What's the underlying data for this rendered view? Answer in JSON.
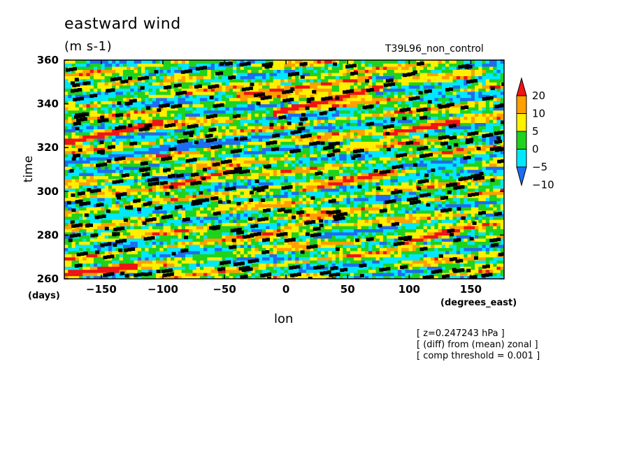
{
  "chart_data": {
    "type": "heatmap",
    "title": "eastward wind",
    "subtitle": "(m s-1)",
    "run_label": "T39L96_non_control",
    "xlabel": "lon",
    "xunit": "(degrees_east)",
    "ylabel": "time",
    "yunit": "(days)",
    "xlim": [
      -180,
      177
    ],
    "ylim": [
      260,
      360
    ],
    "xticks": [
      -150,
      -100,
      -50,
      0,
      50,
      100,
      150
    ],
    "yticks": [
      260,
      280,
      300,
      320,
      340,
      360
    ],
    "colorbar": {
      "levels": [
        -10,
        -5,
        0,
        5,
        10,
        20
      ],
      "labels": [
        "20",
        "10",
        "5",
        "0",
        "-5",
        "-10"
      ],
      "colors": [
        "#1e6cf0",
        "#00e8ff",
        "#1ed21e",
        "#fff000",
        "#ff9f00",
        "#f01414"
      ]
    },
    "overlay": "black dots mark points exceeding comp threshold",
    "streaks": [
      {
        "lon0": -180,
        "t0": 322,
        "lon1": -100,
        "t1": 332,
        "value": 22
      },
      {
        "lon0": -10,
        "t0": 336,
        "lon1": 80,
        "t1": 348,
        "value": 21
      },
      {
        "lon0": -40,
        "t0": 344,
        "lon1": 70,
        "t1": 352,
        "value": 14
      },
      {
        "lon0": 80,
        "t0": 326,
        "lon1": 140,
        "t1": 332,
        "value": 20
      },
      {
        "lon0": -180,
        "t0": 262,
        "lon1": -120,
        "t1": 266,
        "value": 18
      },
      {
        "lon0": 90,
        "t0": 276,
        "lon1": 140,
        "t1": 282,
        "value": 20
      },
      {
        "lon0": -100,
        "t0": 302,
        "lon1": -40,
        "t1": 310,
        "value": 16
      },
      {
        "lon0": 10,
        "t0": 300,
        "lon1": 90,
        "t1": 310,
        "value": 12
      },
      {
        "lon0": -180,
        "t0": 313,
        "lon1": -60,
        "t1": 322,
        "value": -14
      },
      {
        "lon0": -60,
        "t0": 322,
        "lon1": 40,
        "t1": 330,
        "value": -12
      },
      {
        "lon0": 80,
        "t0": 304,
        "lon1": 177,
        "t1": 318,
        "value": -11
      },
      {
        "lon0": -160,
        "t0": 286,
        "lon1": -60,
        "t1": 296,
        "value": -9
      },
      {
        "lon0": 110,
        "t0": 342,
        "lon1": 177,
        "t1": 356,
        "value": -11
      },
      {
        "lon0": -170,
        "t0": 340,
        "lon1": -100,
        "t1": 352,
        "value": -9
      },
      {
        "lon0": 30,
        "t0": 262,
        "lon1": 120,
        "t1": 272,
        "value": -10
      },
      {
        "lon0": -20,
        "t0": 280,
        "lon1": 40,
        "t1": 290,
        "value": 11
      }
    ]
  },
  "notes": [
    "[ z=0.247243 hPa ]",
    "[ (diff) from (mean) zonal ]",
    "[ comp threshold = 0.001 ]"
  ]
}
